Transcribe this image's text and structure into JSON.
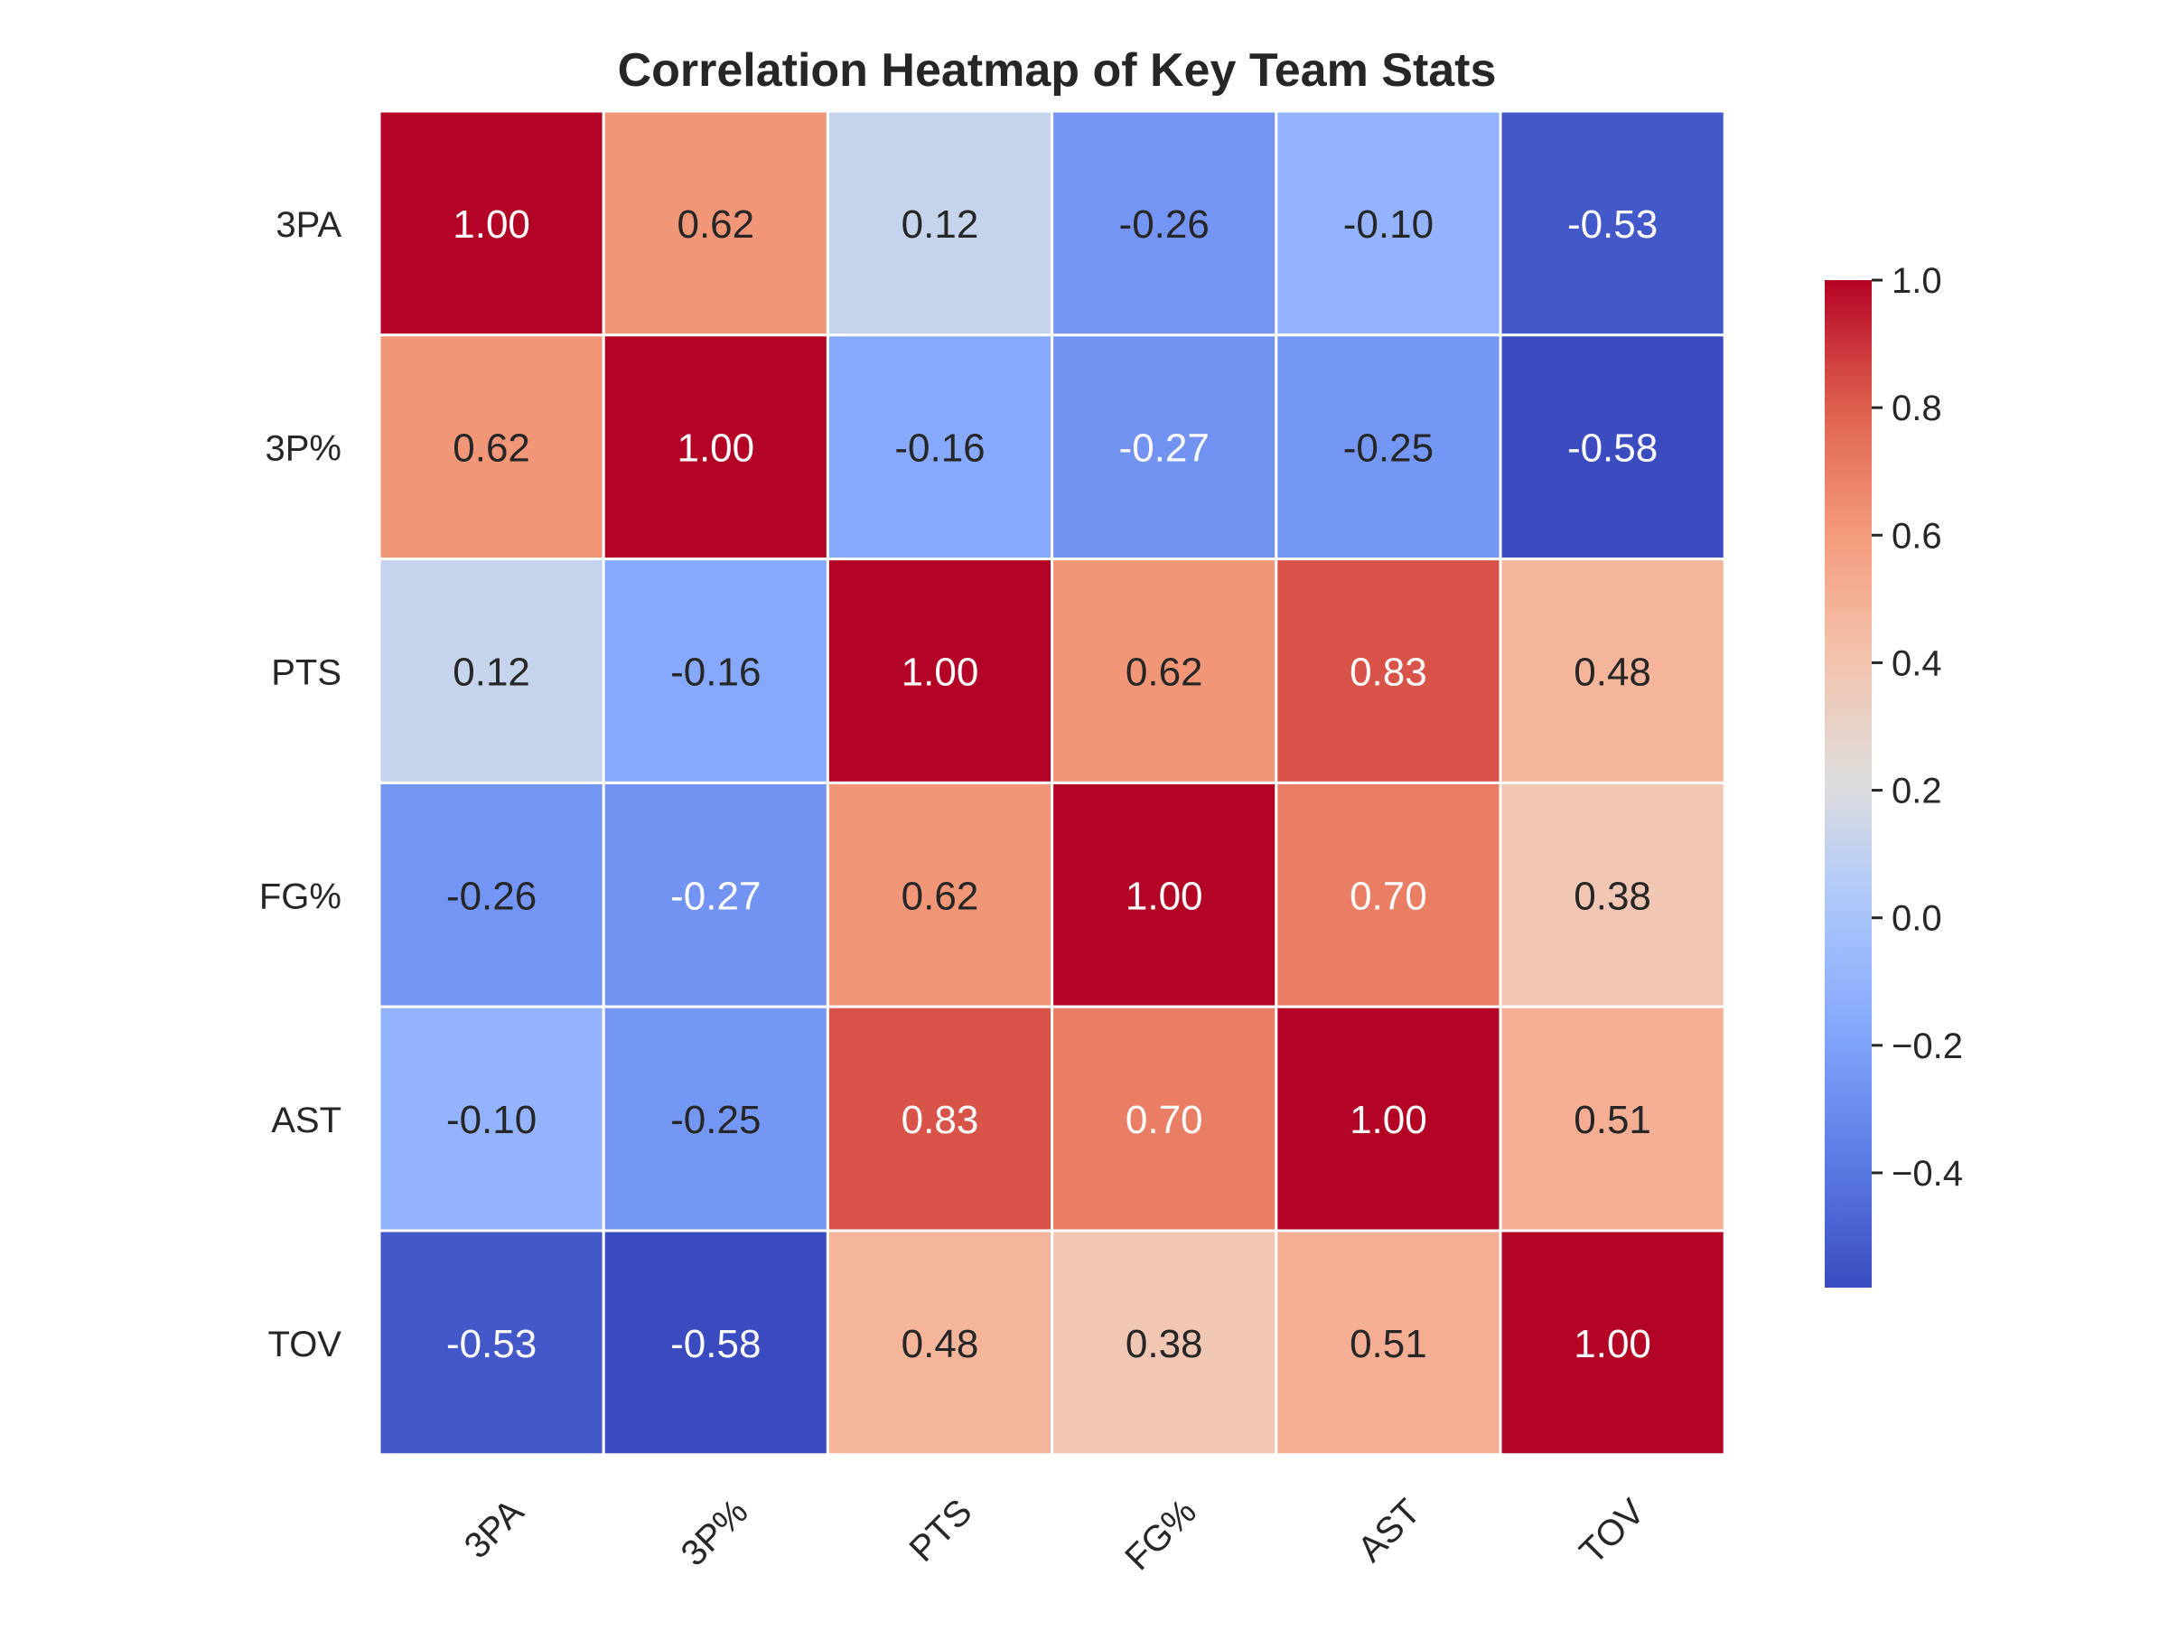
{
  "chart_data": {
    "type": "heatmap",
    "title": "Correlation Heatmap of Key Team Stats",
    "row_labels": [
      "3PA",
      "3P%",
      "PTS",
      "FG%",
      "AST",
      "TOV"
    ],
    "col_labels": [
      "3PA",
      "3P%",
      "PTS",
      "FG%",
      "AST",
      "TOV"
    ],
    "values": [
      [
        1.0,
        0.62,
        0.12,
        -0.26,
        -0.1,
        -0.53
      ],
      [
        0.62,
        1.0,
        -0.16,
        -0.27,
        -0.25,
        -0.58
      ],
      [
        0.12,
        -0.16,
        1.0,
        0.62,
        0.83,
        0.48
      ],
      [
        -0.26,
        -0.27,
        0.62,
        1.0,
        0.7,
        0.38
      ],
      [
        -0.1,
        -0.25,
        0.83,
        0.7,
        1.0,
        0.51
      ],
      [
        -0.53,
        -0.58,
        0.48,
        0.38,
        0.51,
        1.0
      ]
    ],
    "annotation_format": "2 decimals",
    "colormap": "coolwarm",
    "vmin": -0.58,
    "vmax": 1.0,
    "colorbar": {
      "ticks": [
        1.0,
        0.8,
        0.6,
        0.4,
        0.2,
        0.0,
        -0.2,
        -0.4
      ],
      "tick_labels": [
        "1.0",
        "0.8",
        "0.6",
        "0.4",
        "0.2",
        "0.0",
        "−0.2",
        "−0.4"
      ],
      "placement": "right"
    },
    "grid": false
  }
}
